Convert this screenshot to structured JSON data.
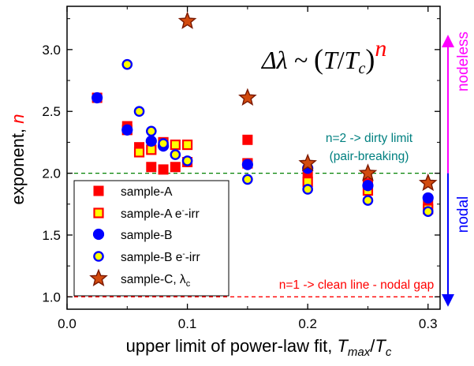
{
  "chart_data": {
    "type": "scatter",
    "xlim": [
      0.0,
      0.31
    ],
    "ylim": [
      0.9,
      3.35
    ],
    "x_ticks": [
      0.0,
      0.1,
      0.2,
      0.3
    ],
    "y_ticks": [
      1.0,
      1.5,
      2.0,
      2.5,
      3.0
    ],
    "x_tick_labels": [
      "0.0",
      "0.1",
      "0.2",
      "0.3"
    ],
    "y_tick_labels": [
      "1.0",
      "1.5",
      "2.0",
      "2.5",
      "3.0"
    ],
    "xlabel": {
      "main": "upper limit of power-law fit, ",
      "var1": "T",
      "sub1": "max",
      "slash": "/",
      "var2": "T",
      "sub2": "c"
    },
    "ylabel": {
      "main": "exponent, ",
      "var": "n"
    },
    "formula": {
      "lhs": "Δλ ~ ",
      "open": "(",
      "T": "T",
      "slash": "/",
      "Tc": "T",
      "sub": "c",
      "close": ")",
      "exp": "n"
    },
    "series": [
      {
        "name": "sample-A",
        "marker": "square",
        "fill": "#ff0000",
        "stroke": "#ff0000",
        "x": [
          0.025,
          0.05,
          0.06,
          0.07,
          0.08,
          0.09,
          0.1,
          0.15,
          0.2,
          0.25,
          0.3
        ],
        "y": [
          2.61,
          2.38,
          2.21,
          2.05,
          2.03,
          2.05,
          2.09,
          2.27,
          2.0,
          1.92,
          1.76
        ]
      },
      {
        "name": "sample-A e⁻-irr",
        "marker": "square",
        "fill": "#ffff00",
        "stroke": "#ff0000",
        "x": [
          0.05,
          0.06,
          0.07,
          0.08,
          0.09,
          0.1,
          0.15,
          0.2,
          0.25,
          0.3
        ],
        "y": [
          2.35,
          2.17,
          2.19,
          2.25,
          2.23,
          2.23,
          2.08,
          1.93,
          1.86,
          1.71
        ]
      },
      {
        "name": "sample-B",
        "marker": "circle",
        "fill": "#0000ff",
        "stroke": "#0000ff",
        "x": [
          0.025,
          0.05,
          0.07,
          0.08,
          0.15,
          0.2,
          0.25,
          0.3
        ],
        "y": [
          2.61,
          2.35,
          2.26,
          2.22,
          2.07,
          2.04,
          1.9,
          1.8
        ]
      },
      {
        "name": "sample-B e⁻-irr",
        "marker": "circle",
        "fill": "#ffff00",
        "stroke": "#0000ff",
        "x": [
          0.05,
          0.06,
          0.07,
          0.08,
          0.09,
          0.1,
          0.15,
          0.2,
          0.25,
          0.3
        ],
        "y": [
          2.88,
          2.5,
          2.34,
          2.24,
          2.15,
          2.1,
          1.95,
          1.87,
          1.78,
          1.69
        ]
      },
      {
        "name": "sample-C, λc",
        "marker": "star",
        "fill": "#d24a0e",
        "stroke": "#7a1800",
        "x": [
          0.1,
          0.15,
          0.2,
          0.25,
          0.3
        ],
        "y": [
          3.23,
          2.61,
          2.08,
          2.0,
          1.92
        ]
      }
    ],
    "legend": {
      "placement": "lower-left",
      "entries": [
        {
          "text": "sample-A"
        },
        {
          "pre": "sample-A e",
          "sup": "-",
          "post": "-irr"
        },
        {
          "text": "sample-B"
        },
        {
          "pre": "sample-B e",
          "sup": "-",
          "post": "-irr"
        },
        {
          "pre": "sample-C, λ",
          "sub": "c"
        }
      ]
    },
    "reference_lines": [
      {
        "y": 2.0,
        "color": "#008000",
        "style": "dashed",
        "label_lines": [
          "n=2 -> dirty limit",
          "(pair-breaking)"
        ],
        "label_color": "#008080"
      },
      {
        "y": 1.0,
        "color": "#ff0000",
        "style": "dashed",
        "label_lines": [
          "n=1 -> clean line - nodal gap"
        ],
        "label_color": "#ff0000"
      }
    ],
    "side_arrow": {
      "top_label": "nodeless",
      "top_color": "#ff00ff",
      "bottom_label": "nodal",
      "bottom_color": "#0000ff",
      "y_from": 3.1,
      "y_mid": 2.0,
      "y_to": 0.94
    },
    "grid": false
  }
}
